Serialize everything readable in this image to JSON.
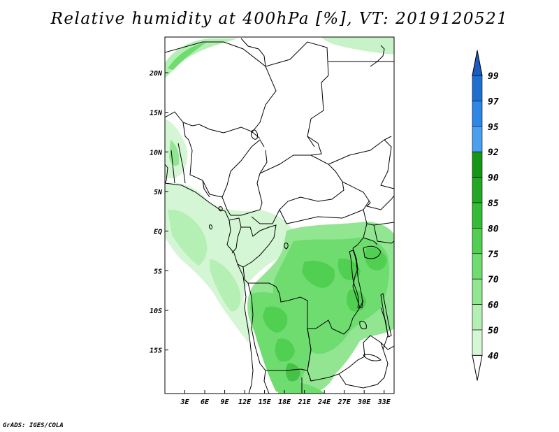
{
  "title": "Relative humidity at 400hPa [%], VT: 2019120521",
  "credit": "GrADS: IGES/COLA",
  "map": {
    "lon_range": [
      0,
      34.5
    ],
    "lat_range": [
      -20.5,
      24.5
    ],
    "lat_ticks": [
      {
        "value": 20,
        "label": "20N"
      },
      {
        "value": 15,
        "label": "15N"
      },
      {
        "value": 10,
        "label": "10N"
      },
      {
        "value": 5,
        "label": "5N"
      },
      {
        "value": 0,
        "label": "EQ"
      },
      {
        "value": -5,
        "label": "5S"
      },
      {
        "value": -10,
        "label": "10S"
      },
      {
        "value": -15,
        "label": "15S"
      }
    ],
    "lon_ticks": [
      {
        "value": 3,
        "label": "3E"
      },
      {
        "value": 6,
        "label": "6E"
      },
      {
        "value": 9,
        "label": "9E"
      },
      {
        "value": 12,
        "label": "12E"
      },
      {
        "value": 15,
        "label": "15E"
      },
      {
        "value": 18,
        "label": "18E"
      },
      {
        "value": 21,
        "label": "21E"
      },
      {
        "value": 24,
        "label": "24E"
      },
      {
        "value": 27,
        "label": "27E"
      },
      {
        "value": 30,
        "label": "30E"
      },
      {
        "value": 33,
        "label": "33E"
      }
    ]
  },
  "colorbar": {
    "levels": [
      {
        "label": "99",
        "color": "#1e6fd0"
      },
      {
        "label": "97",
        "color": "#2e86e6"
      },
      {
        "label": "95",
        "color": "#4aa0ef"
      },
      {
        "label": "92",
        "color": "#169616"
      },
      {
        "label": "90",
        "color": "#22a822"
      },
      {
        "label": "85",
        "color": "#34bc34"
      },
      {
        "label": "80",
        "color": "#50cf50"
      },
      {
        "label": "75",
        "color": "#6edc6e"
      },
      {
        "label": "70",
        "color": "#92e692"
      },
      {
        "label": "60",
        "color": "#b4efb4"
      },
      {
        "label": "50",
        "color": "#d4f6d4"
      },
      {
        "label": "40",
        "color": "#ecfbec"
      }
    ],
    "top_color": "#1a5cc0",
    "bottom_color": "#ffffff"
  },
  "colors": {
    "border": "#000000",
    "green_light": "#d8f6d8",
    "green_mid": "#9ee89e",
    "green_strong": "#62d462",
    "green_dark": "#46c046"
  }
}
